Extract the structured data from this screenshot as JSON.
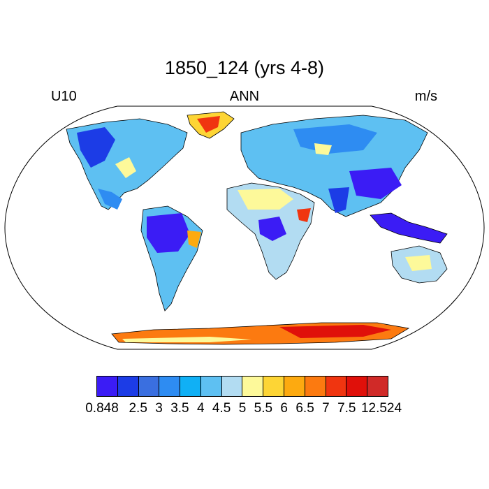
{
  "title": "1850_124 (yrs 4-8)",
  "left_string": "U10",
  "center_string": "ANN",
  "right_string": "m/s",
  "colorbar": {
    "colors": [
      "#3b1cf5",
      "#1c3ce6",
      "#3a6fe0",
      "#2e8cf2",
      "#10b0f5",
      "#5ec0f2",
      "#b2dcf2",
      "#fdf99a",
      "#fdd535",
      "#fdaa10",
      "#fc7a10",
      "#f03510",
      "#e0100a",
      "#d02a28"
    ],
    "labels": [
      "0.848",
      "2.5",
      "3",
      "3.5",
      "4",
      "4.5",
      "5",
      "5.5",
      "6",
      "6.5",
      "7",
      "7.5",
      "12.524"
    ]
  }
}
